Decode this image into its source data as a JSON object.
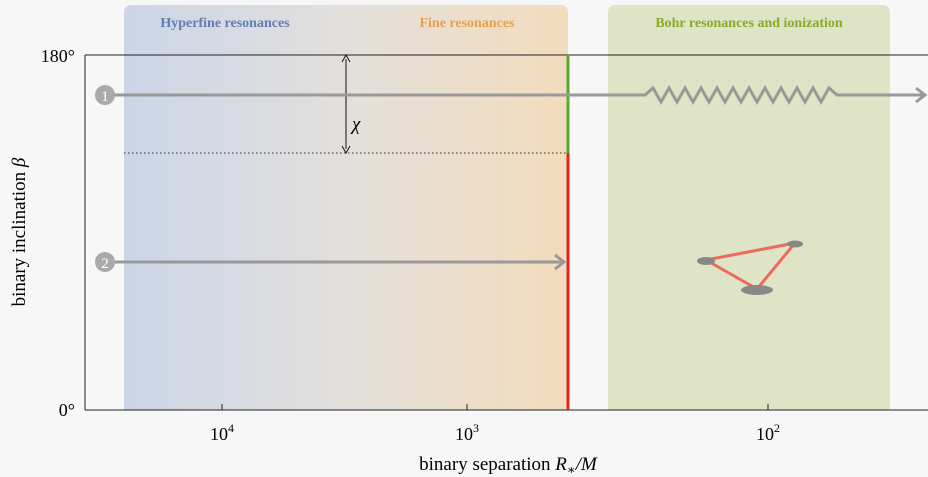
{
  "regions": [
    {
      "label": "Hyperfine resonances"
    },
    {
      "label": "Fine resonances"
    },
    {
      "label": "Bohr resonances and ionization"
    }
  ],
  "y_axis": {
    "label": "binary inclination ",
    "symbol": "β",
    "ticks": [
      "180°",
      "0°"
    ]
  },
  "x_axis": {
    "label": "binary separation ",
    "symbol": "R",
    "subscript": "∗",
    "suffix": "/M",
    "ticks": [
      {
        "base": "10",
        "exp": "4"
      },
      {
        "base": "10",
        "exp": "3"
      },
      {
        "base": "10",
        "exp": "2"
      }
    ]
  },
  "angle_label": "χ",
  "trajectories": [
    {
      "label": "1"
    },
    {
      "label": "2"
    }
  ]
}
